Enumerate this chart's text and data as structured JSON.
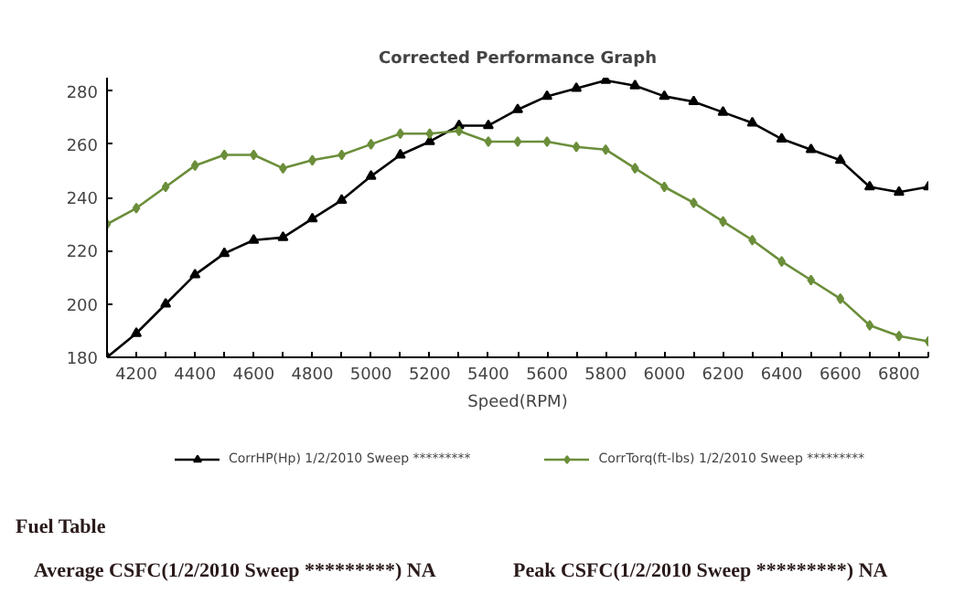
{
  "chart_data": {
    "type": "line",
    "title": "Corrected Performance Graph",
    "xlabel": "Speed(RPM)",
    "x": [
      4100,
      4200,
      4300,
      4400,
      4500,
      4600,
      4700,
      4800,
      4900,
      5000,
      5100,
      5200,
      5300,
      5400,
      5500,
      5600,
      5700,
      5800,
      5900,
      6000,
      6100,
      6200,
      6300,
      6400,
      6500,
      6600,
      6700,
      6800,
      6900
    ],
    "series": [
      {
        "name": "CorrHP(Hp) 1/2/2010 Sweep *********",
        "color": "#000000",
        "marker": "triangle",
        "values": [
          180,
          189,
          200,
          211,
          219,
          224,
          225,
          232,
          239,
          248,
          256,
          261,
          267,
          267,
          273,
          278,
          281,
          284,
          282,
          278,
          276,
          272,
          268,
          262,
          258,
          254,
          244,
          242,
          244
        ]
      },
      {
        "name": "CorrTorq(ft-lbs) 1/2/2010 Sweep *********",
        "color": "#6b8e3a",
        "marker": "diamond",
        "values": [
          230,
          236,
          244,
          252,
          256,
          256,
          251,
          254,
          256,
          260,
          264,
          264,
          265,
          261,
          261,
          261,
          259,
          258,
          251,
          244,
          238,
          231,
          224,
          216,
          209,
          202,
          192,
          188,
          186
        ]
      }
    ],
    "xlim": [
      4100,
      6900
    ],
    "xticks": [
      {
        "value": 4100,
        "label": null
      },
      4200,
      {
        "value": 4300,
        "label": null
      },
      4400,
      {
        "value": 4500,
        "label": null
      },
      4600,
      {
        "value": 4700,
        "label": null
      },
      4800,
      {
        "value": 4900,
        "label": null
      },
      5000,
      {
        "value": 5100,
        "label": null
      },
      5200,
      {
        "value": 5300,
        "label": null
      },
      5400,
      {
        "value": 5500,
        "label": null
      },
      5600,
      {
        "value": 5700,
        "label": null
      },
      5800,
      {
        "value": 5900,
        "label": null
      },
      6000,
      {
        "value": 6100,
        "label": null
      },
      6200,
      {
        "value": 6300,
        "label": null
      },
      6400,
      {
        "value": 6500,
        "label": null
      },
      6600,
      {
        "value": 6700,
        "label": null
      },
      6800,
      {
        "value": 6900,
        "label": null
      }
    ],
    "ylim": [
      180,
      285
    ],
    "yticks": [
      180,
      200,
      220,
      240,
      260,
      280
    ],
    "grid": false,
    "legend": "bottom",
    "annotations": [
      "Fuel Table",
      "Average CSFC(1/2/2010 Sweep *********)  NA",
      "Peak CSFC(1/2/2010 Sweep *********)  NA"
    ]
  }
}
